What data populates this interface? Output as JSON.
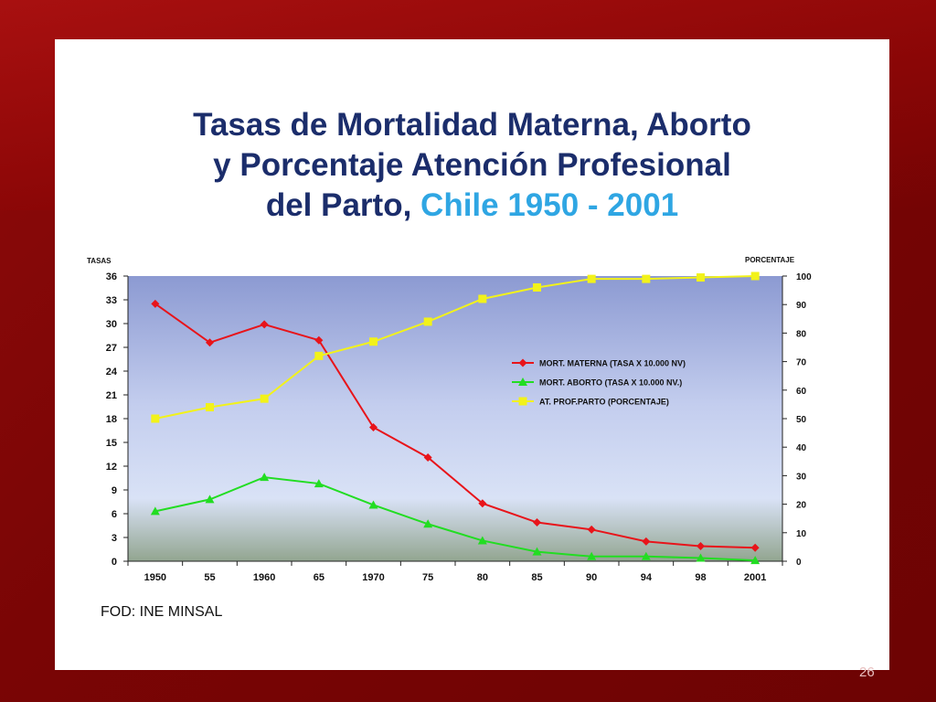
{
  "slide": {
    "title_line1": "Tasas de Mortalidad Materna, Aborto",
    "title_line2": "y Porcentaje Atención Profesional",
    "title_line3_a": "del Parto,",
    "title_line3_b": "Chile 1950 - 2001",
    "source": "FOD: INE   MINSAL",
    "page_number": "26"
  },
  "chart_data": {
    "type": "line",
    "ylabel_left": "TASAS",
    "ylabel_right": "PORCENTAJE",
    "categories": [
      "1950",
      "55",
      "1960",
      "65",
      "1970",
      "75",
      "80",
      "85",
      "90",
      "94",
      "98",
      "2001"
    ],
    "left_axis": {
      "ylim": [
        0,
        36
      ],
      "ticks": [
        "0",
        "3",
        "6",
        "9",
        "12",
        "15",
        "18",
        "21",
        "24",
        "27",
        "30",
        "33",
        "36"
      ]
    },
    "right_axis": {
      "ylim": [
        0,
        100
      ],
      "ticks": [
        "0",
        "10",
        "20",
        "30",
        "40",
        "50",
        "60",
        "70",
        "80",
        "90",
        "100"
      ]
    },
    "legend_position": "right",
    "series": [
      {
        "name": "MORT. MATERNA (TASA X 10.000 NV)",
        "axis": "left",
        "color": "#e8141a",
        "marker": "diamond",
        "values": [
          32.5,
          27.6,
          29.9,
          27.9,
          16.9,
          13.1,
          7.3,
          4.9,
          4.0,
          2.5,
          1.9,
          1.7
        ]
      },
      {
        "name": "MORT. ABORTO (TASA X 10.000 NV.)",
        "axis": "left",
        "color": "#22dd22",
        "marker": "triangle",
        "values": [
          6.3,
          7.8,
          10.6,
          9.8,
          7.1,
          4.7,
          2.6,
          1.2,
          0.6,
          0.6,
          0.4,
          0.1
        ]
      },
      {
        "name": "AT. PROF.PARTO (PORCENTAJE)",
        "axis": "right",
        "color": "#f2f21a",
        "marker": "square",
        "values": [
          50,
          54,
          57,
          72,
          77,
          84,
          92,
          96,
          99,
          99,
          99.5,
          100
        ]
      }
    ]
  }
}
